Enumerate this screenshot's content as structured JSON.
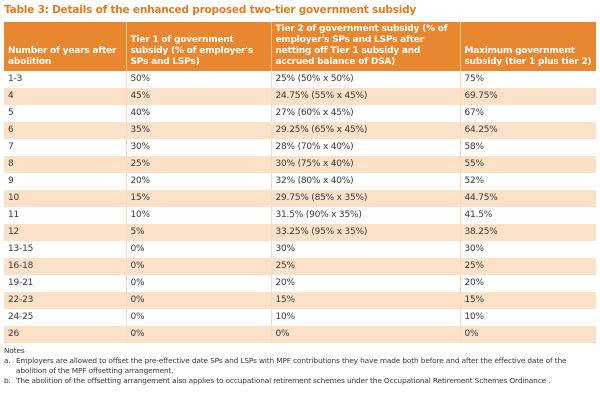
{
  "title": "Table 3: Details of the enhanced proposed two-tier government subsidy",
  "table": {
    "headers": [
      "Number of years after abolition",
      "Tier 1 of government subsidy (% of employer's SPs and LSPs)",
      "Tier 2 of government subsidy (% of employer's SPs and LSPs after netting off Tier 1 subsidy and accrued balance of DSA)",
      "Maximum government subsidy (tier 1 plus tier 2)"
    ],
    "rows": [
      [
        "1-3",
        "50%",
        "25% (50% x 50%)",
        "75%"
      ],
      [
        "4",
        "45%",
        "24.75% (55% x 45%)",
        "69.75%"
      ],
      [
        "5",
        "40%",
        "27% (60% x 45%)",
        "67%"
      ],
      [
        "6",
        "35%",
        "29.25% (65% x 45%)",
        "64.25%"
      ],
      [
        "7",
        "30%",
        "28% (70% x 40%)",
        "58%"
      ],
      [
        "8",
        "25%",
        "30% (75% x 40%)",
        "55%"
      ],
      [
        "9",
        "20%",
        "32% (80% x 40%)",
        "52%"
      ],
      [
        "10",
        "15%",
        "29.75% (85% x 35%)",
        "44.75%"
      ],
      [
        "11",
        "10%",
        "31.5% (90% x 35%)",
        "41.5%"
      ],
      [
        "12",
        "5%",
        "33.25% (95% x 35%)",
        "38.25%"
      ],
      [
        "13-15",
        "0%",
        "30%",
        "30%"
      ],
      [
        "16-18",
        "0%",
        "25%",
        "25%"
      ],
      [
        "19-21",
        "0%",
        "20%",
        "20%"
      ],
      [
        "22-23",
        "0%",
        "15%",
        "15%"
      ],
      [
        "24-25",
        "0%",
        "10%",
        "10%"
      ],
      [
        "26",
        "0%",
        "0%",
        "0%"
      ]
    ]
  },
  "notes": {
    "heading": "Notes",
    "items": [
      {
        "label": "a.",
        "text": "Employers are allowed to offset the pre-effective date SPs and LSPs with MPF contributions they have made both before and after the effective date of the abolition of the MPF offsetting arrangement."
      },
      {
        "label": "b.",
        "text": "The abolition of the offsetting arrangement also applies to occupational retirement schemes under the Occupational Retirement Schemes Ordinance ."
      }
    ]
  },
  "colors": {
    "title": "#e07b22",
    "header_bg": "#e8872f",
    "row_alt_bg": "#fbe1c8"
  }
}
